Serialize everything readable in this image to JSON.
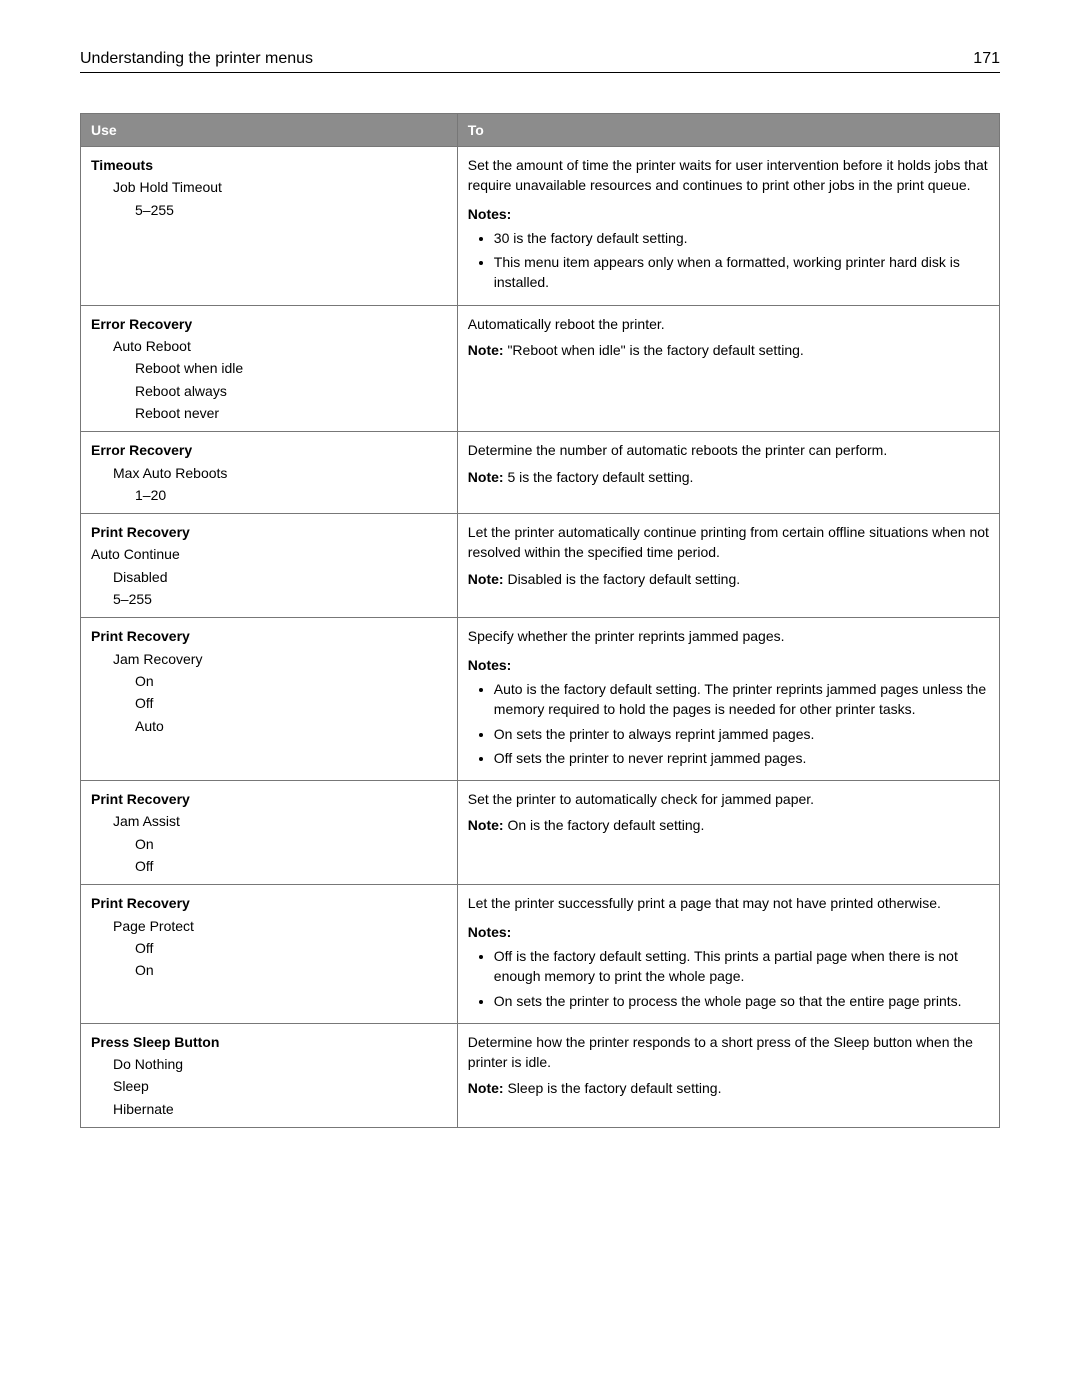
{
  "header": {
    "title": "Understanding the printer menus",
    "page_number": "171"
  },
  "columns": {
    "use": "Use",
    "to": "To"
  },
  "labels": {
    "notes": "Notes:",
    "note": "Note:"
  },
  "rows": [
    {
      "use": {
        "title": "Timeouts",
        "items": [
          {
            "text": "Job Hold Timeout",
            "level": 1
          },
          {
            "text": "5–255",
            "level": 2
          }
        ]
      },
      "to": {
        "paragraphs": [
          "Set the amount of time the printer waits for user intervention before it holds jobs that require unavailable resources and continues to print other jobs in the print queue."
        ],
        "notes_label": true,
        "notes": [
          "30 is the factory default setting.",
          "This menu item appears only when a formatted, working printer hard disk is installed."
        ]
      }
    },
    {
      "use": {
        "title": "Error Recovery",
        "items": [
          {
            "text": "Auto Reboot",
            "level": 1
          },
          {
            "text": "Reboot when idle",
            "level": 2
          },
          {
            "text": "Reboot always",
            "level": 2
          },
          {
            "text": "Reboot never",
            "level": 2
          }
        ]
      },
      "to": {
        "paragraphs": [
          "Automatically reboot the printer."
        ],
        "note_inline": "\"Reboot when idle\" is the factory default setting."
      }
    },
    {
      "use": {
        "title": "Error Recovery",
        "items": [
          {
            "text": "Max Auto Reboots",
            "level": 1
          },
          {
            "text": "1–20",
            "level": 2
          }
        ]
      },
      "to": {
        "paragraphs": [
          "Determine the number of automatic reboots the printer can perform."
        ],
        "note_inline": "5 is the factory default setting."
      }
    },
    {
      "use": {
        "title": "Print Recovery",
        "items": [
          {
            "text": "Auto Continue",
            "level": 0
          },
          {
            "text": "Disabled",
            "level": 1
          },
          {
            "text": "5–255",
            "level": 1
          }
        ]
      },
      "to": {
        "paragraphs": [
          "Let the printer automatically continue printing from certain offline situations when not resolved within the specified time period."
        ],
        "note_inline": "Disabled is the factory default setting."
      }
    },
    {
      "use": {
        "title": "Print Recovery",
        "items": [
          {
            "text": "Jam Recovery",
            "level": 1
          },
          {
            "text": "On",
            "level": 2
          },
          {
            "text": "Off",
            "level": 2
          },
          {
            "text": "Auto",
            "level": 2
          }
        ]
      },
      "to": {
        "paragraphs": [
          "Specify whether the printer reprints jammed pages."
        ],
        "notes_label": true,
        "notes": [
          "Auto is the factory default setting. The printer reprints jammed pages unless the memory required to hold the pages is needed for other printer tasks.",
          "On sets the printer to always reprint jammed pages.",
          "Off sets the printer to never reprint jammed pages."
        ]
      }
    },
    {
      "use": {
        "title": "Print Recovery",
        "items": [
          {
            "text": "Jam Assist",
            "level": 1
          },
          {
            "text": "On",
            "level": 2
          },
          {
            "text": "Off",
            "level": 2
          }
        ]
      },
      "to": {
        "paragraphs": [
          "Set the printer to automatically check for jammed paper."
        ],
        "note_inline": "On is the factory default setting."
      }
    },
    {
      "use": {
        "title": "Print Recovery",
        "items": [
          {
            "text": "Page Protect",
            "level": 1
          },
          {
            "text": "Off",
            "level": 2
          },
          {
            "text": "On",
            "level": 2
          }
        ]
      },
      "to": {
        "paragraphs": [
          "Let the printer successfully print a page that may not have printed otherwise."
        ],
        "notes_label": true,
        "notes": [
          "Off is the factory default setting. This prints a partial page when there is not enough memory to print the whole page.",
          "On sets the printer to process the whole page so that the entire page prints."
        ]
      }
    },
    {
      "use": {
        "title": "Press Sleep Button",
        "items": [
          {
            "text": "Do Nothing",
            "level": 1
          },
          {
            "text": "Sleep",
            "level": 1
          },
          {
            "text": "Hibernate",
            "level": 1
          }
        ]
      },
      "to": {
        "paragraphs": [
          "Determine how the printer responds to a short press of the Sleep button when the printer is idle."
        ],
        "note_inline": "Sleep is the factory default setting."
      }
    }
  ]
}
